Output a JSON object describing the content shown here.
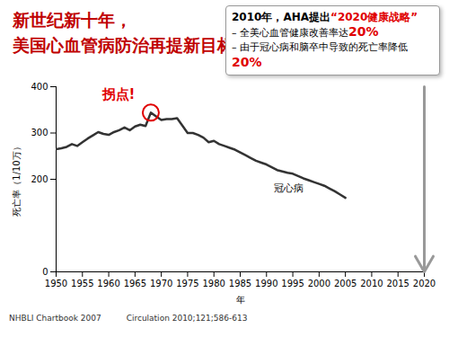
{
  "chart_data": {
    "type": "line",
    "title": [
      "新世纪新十年，",
      "美国心血管病防治再提新目标"
    ],
    "x_label": "年",
    "y_label": "死亡率（1/10万）",
    "x": [
      1950,
      1951,
      1952,
      1953,
      1954,
      1955,
      1956,
      1957,
      1958,
      1959,
      1960,
      1961,
      1962,
      1963,
      1964,
      1965,
      1966,
      1967,
      1968,
      1969,
      1970,
      1971,
      1972,
      1973,
      1974,
      1975,
      1976,
      1977,
      1978,
      1979,
      1980,
      1981,
      1982,
      1983,
      1984,
      1985,
      1986,
      1987,
      1988,
      1989,
      1990,
      1991,
      1992,
      1993,
      1994,
      1995,
      1996,
      1997,
      1998,
      1999,
      2000,
      2001,
      2002,
      2003,
      2004,
      2005
    ],
    "series": [
      {
        "name": "冠心病",
        "color": "#333333",
        "values": [
          265,
          267,
          270,
          276,
          272,
          280,
          288,
          295,
          302,
          298,
          296,
          302,
          306,
          312,
          306,
          314,
          318,
          315,
          344,
          336,
          328,
          330,
          330,
          332,
          316,
          300,
          300,
          296,
          290,
          280,
          283,
          276,
          272,
          268,
          264,
          258,
          252,
          246,
          240,
          236,
          232,
          226,
          220,
          217,
          214,
          212,
          207,
          202,
          198,
          194,
          190,
          186,
          180,
          174,
          167,
          160
        ]
      }
    ],
    "xlim": [
      1950,
      2020
    ],
    "xticks": [
      1950,
      1955,
      1960,
      1965,
      1970,
      1975,
      1980,
      1985,
      1990,
      1995,
      2000,
      2005,
      2010,
      2015,
      2020
    ],
    "ylim": [
      0,
      400
    ],
    "yticks": [
      0,
      200,
      300,
      400
    ],
    "grid": false,
    "annotations": [
      {
        "text": "拐点!",
        "color": "#e00000"
      }
    ],
    "text_box": [
      [
        {
          "text": "2010年，AHA提出"
        },
        {
          "text": "“2020健康战略”",
          "color": "#e00000"
        }
      ],
      [
        {
          "text": "– 全美心血管健康改善率达"
        },
        {
          "text": "20%",
          "color": "#e00000"
        }
      ],
      [
        {
          "text": "– 由于冠心病和脑卒中导致的死亡率降低"
        },
        {
          "text": "20%",
          "color": "#e00000"
        }
      ]
    ],
    "sources": [
      "NHBLI Chartbook 2007",
      "Circulation 2010;121;586-613"
    ]
  }
}
